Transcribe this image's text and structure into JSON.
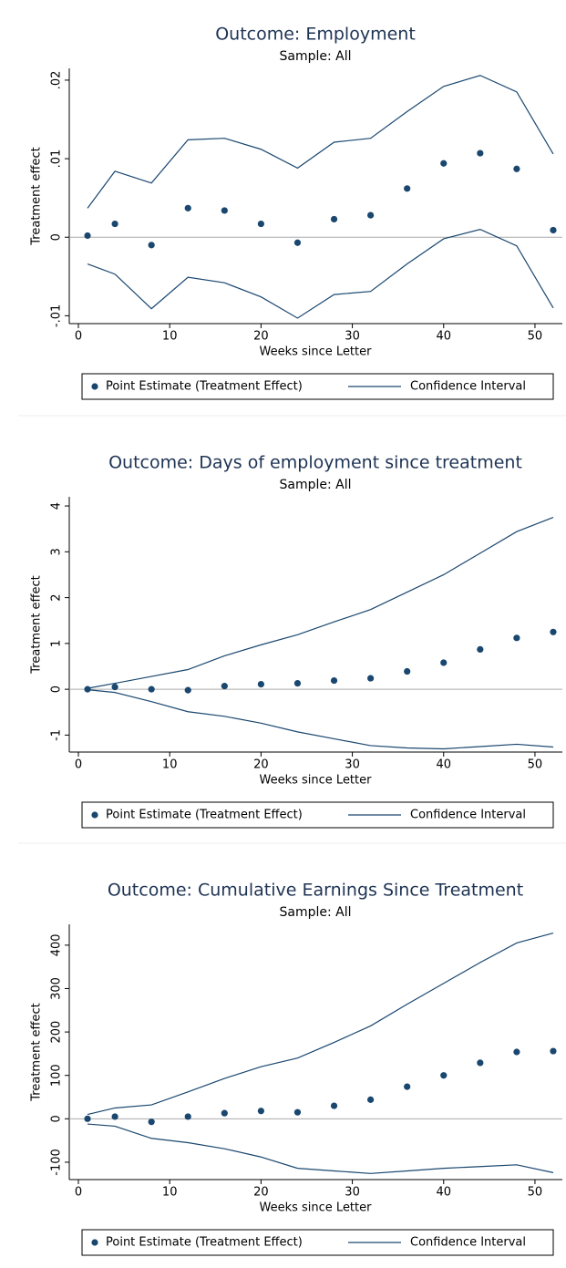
{
  "chart_data": [
    {
      "type": "scatter",
      "title": "Outcome: Employment",
      "subtitle": "Sample: All",
      "xlabel": "Weeks since Letter",
      "ylabel": "Treatment effect",
      "x": [
        1,
        4,
        8,
        12,
        16,
        20,
        24,
        28,
        32,
        36,
        40,
        44,
        48,
        52
      ],
      "series": [
        {
          "name": "Point Estimate (Treatment Effect)",
          "color": "#1a476f",
          "values": [
            0.0002,
            0.0017,
            -0.001,
            0.0037,
            0.0034,
            0.0017,
            -0.0007,
            0.0023,
            0.0028,
            0.0062,
            0.0094,
            0.0107,
            0.0087,
            0.0009
          ]
        },
        {
          "name": "Confidence Interval",
          "color": "#1a476f",
          "upper": [
            0.0037,
            0.0084,
            0.0069,
            0.0124,
            0.0126,
            0.0112,
            0.0088,
            0.0121,
            0.0126,
            0.016,
            0.0192,
            0.0206,
            0.0185,
            0.0106
          ],
          "lower": [
            -0.0034,
            -0.0047,
            -0.0091,
            -0.0051,
            -0.0058,
            -0.0076,
            -0.0103,
            -0.0073,
            -0.0069,
            -0.0034,
            -0.0002,
            0.001,
            -0.0011,
            -0.009
          ]
        }
      ],
      "xlim": [
        -1,
        53
      ],
      "xticks": [
        0,
        10,
        20,
        30,
        40,
        50
      ],
      "ylim": [
        -0.011,
        0.0215
      ],
      "yticks": [
        {
          "value": -0.01,
          "label": "-.01"
        },
        0,
        {
          "value": 0.01,
          "label": ".01"
        },
        {
          "value": 0.02,
          "label": ".02"
        }
      ],
      "yline": 0
    },
    {
      "type": "scatter",
      "title": "Outcome: Days of employment since treatment",
      "subtitle": "Sample: All",
      "xlabel": "Weeks since Letter",
      "ylabel": "Treatment effect",
      "x": [
        1,
        4,
        8,
        12,
        16,
        20,
        24,
        28,
        32,
        36,
        40,
        44,
        48,
        52
      ],
      "series": [
        {
          "name": "Point Estimate (Treatment Effect)",
          "color": "#1a476f",
          "values": [
            0,
            0.05,
            0,
            -0.02,
            0.07,
            0.11,
            0.13,
            0.19,
            0.24,
            0.39,
            0.58,
            0.87,
            1.12,
            1.25
          ]
        },
        {
          "name": "Confidence Interval",
          "color": "#1a476f",
          "upper": [
            0.02,
            0.13,
            0.28,
            0.43,
            0.73,
            0.97,
            1.19,
            1.47,
            1.74,
            2.12,
            2.5,
            2.97,
            3.44,
            3.75
          ],
          "lower": [
            -0.01,
            -0.07,
            -0.27,
            -0.49,
            -0.59,
            -0.74,
            -0.93,
            -1.08,
            -1.23,
            -1.28,
            -1.3,
            -1.25,
            -1.2,
            -1.26
          ]
        }
      ],
      "xlim": [
        -1,
        53
      ],
      "xticks": [
        0,
        10,
        20,
        30,
        40,
        50
      ],
      "ylim": [
        -1.37,
        4.2
      ],
      "yticks": [
        -1,
        0,
        1,
        2,
        3,
        4
      ],
      "yline": 0
    },
    {
      "type": "scatter",
      "title": "Outcome: Cumulative Earnings Since Treatment",
      "subtitle": "Sample: All",
      "xlabel": "Weeks since Letter",
      "ylabel": "Treatment effect",
      "x": [
        1,
        4,
        8,
        12,
        16,
        20,
        24,
        28,
        32,
        36,
        40,
        44,
        48,
        52
      ],
      "series": [
        {
          "name": "Point Estimate (Treatment Effect)",
          "color": "#1a476f",
          "values": [
            0,
            5,
            -7,
            5,
            13,
            18,
            15,
            30,
            44,
            74,
            100,
            129,
            154,
            156
          ]
        },
        {
          "name": "Confidence Interval",
          "color": "#1a476f",
          "upper": [
            10,
            25,
            32,
            62,
            93,
            120,
            140,
            176,
            214,
            264,
            312,
            360,
            405,
            428
          ],
          "lower": [
            -12,
            -17,
            -45,
            -55,
            -69,
            -88,
            -114,
            -120,
            -126,
            -120,
            -114,
            -110,
            -106,
            -124
          ]
        }
      ],
      "xlim": [
        -1,
        53
      ],
      "xticks": [
        0,
        10,
        20,
        30,
        40,
        50
      ],
      "ylim": [
        -140,
        448
      ],
      "yticks": [
        -100,
        0,
        100,
        200,
        300,
        400
      ],
      "yline": 0
    }
  ]
}
